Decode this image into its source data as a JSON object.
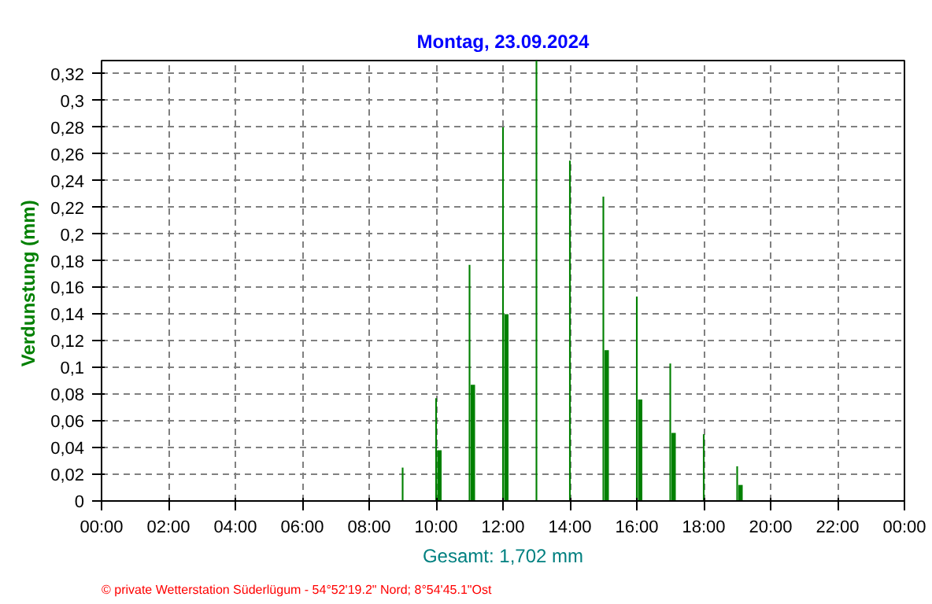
{
  "chart_data": {
    "type": "bar",
    "title": "Montag, 23.09.2024",
    "xlabel": "Gesamt: 1,702 mm",
    "ylabel": "Verdunstung  (mm)",
    "x": [
      9,
      10,
      11,
      12,
      13,
      14,
      15,
      16,
      17,
      18,
      19
    ],
    "series": [
      {
        "color": "#008000",
        "values": [
          0.025,
          0.077,
          0.177,
          0.28,
          0.33,
          0.255,
          0.228,
          0.153,
          0.103,
          0.05,
          0.026
        ]
      },
      {
        "color": "#008000",
        "values": [
          null,
          0.038,
          0.087,
          0.14,
          null,
          null,
          0.113,
          0.076,
          0.051,
          null,
          0.012
        ]
      }
    ],
    "xlim": [
      0,
      24
    ],
    "xticks": [
      {
        "value": 0,
        "label": "00:00"
      },
      {
        "value": 2,
        "label": "02:00"
      },
      {
        "value": 4,
        "label": "04:00"
      },
      {
        "value": 6,
        "label": "06:00"
      },
      {
        "value": 8,
        "label": "08:00"
      },
      {
        "value": 10,
        "label": "10:00"
      },
      {
        "value": 12,
        "label": "12:00"
      },
      {
        "value": 14,
        "label": "14:00"
      },
      {
        "value": 16,
        "label": "16:00"
      },
      {
        "value": 18,
        "label": "18:00"
      },
      {
        "value": 20,
        "label": "20:00"
      },
      {
        "value": 22,
        "label": "22:00"
      },
      {
        "value": 24,
        "label": "00:00"
      }
    ],
    "ylim": [
      0,
      0.33
    ],
    "yticks": [
      0,
      {
        "value": 0.02,
        "label": "0,02"
      },
      {
        "value": 0.04,
        "label": "0,04"
      },
      {
        "value": 0.06,
        "label": "0,06"
      },
      {
        "value": 0.08,
        "label": "0,08"
      },
      {
        "value": 0.1,
        "label": "0,1"
      },
      {
        "value": 0.12,
        "label": "0,12"
      },
      {
        "value": 0.14,
        "label": "0,14"
      },
      {
        "value": 0.16,
        "label": "0,16"
      },
      {
        "value": 0.18,
        "label": "0,18"
      },
      {
        "value": 0.2,
        "label": "0,2"
      },
      {
        "value": 0.22,
        "label": "0,22"
      },
      {
        "value": 0.24,
        "label": "0,24"
      },
      {
        "value": 0.26,
        "label": "0,26"
      },
      {
        "value": 0.28,
        "label": "0,28"
      },
      {
        "value": 0.3,
        "label": "0,3"
      },
      {
        "value": 0.32,
        "label": "0,32"
      }
    ],
    "grid": true,
    "annotations": [
      "© private Wetterstation Süderlügum - 54°52'19.2\" Nord; 8°54'45.1\"Ost"
    ]
  }
}
